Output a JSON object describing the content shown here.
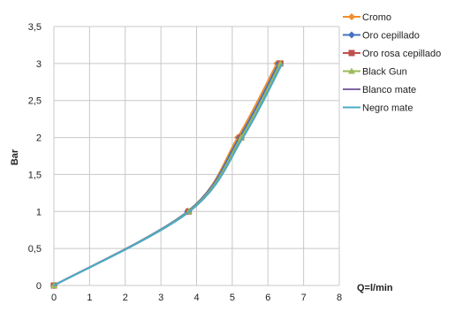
{
  "chart_data": {
    "type": "line",
    "title": "",
    "xlabel": "Q=l/min",
    "ylabel": "Bar",
    "xlim": [
      0,
      8
    ],
    "ylim": [
      0,
      3.5
    ],
    "x_ticks": [
      "0",
      "1",
      "2",
      "3",
      "4",
      "5",
      "6",
      "7",
      "8"
    ],
    "y_ticks": [
      "0",
      "0,5",
      "1",
      "1,5",
      "2",
      "2,5",
      "3",
      "3,5"
    ],
    "grid": true,
    "legend_position": "right",
    "series": [
      {
        "name": "Cromo",
        "color": "#f28e2b",
        "marker": "diamond",
        "points": [
          [
            0,
            0
          ],
          [
            3.75,
            1
          ],
          [
            5.15,
            2
          ],
          [
            6.25,
            3
          ]
        ]
      },
      {
        "name": "Oro cepillado",
        "color": "#4472c4",
        "marker": "diamond",
        "points": [
          [
            0,
            0
          ],
          [
            3.75,
            1
          ],
          [
            5.2,
            2
          ],
          [
            6.3,
            3
          ]
        ]
      },
      {
        "name": "Oro rosa cepillado",
        "color": "#c0504d",
        "marker": "square",
        "points": [
          [
            0,
            0
          ],
          [
            3.78,
            1
          ],
          [
            5.25,
            2
          ],
          [
            6.35,
            3
          ]
        ]
      },
      {
        "name": "Black Gun",
        "color": "#9bbb59",
        "marker": "triangle",
        "points": [
          [
            0,
            0
          ],
          [
            3.78,
            1
          ],
          [
            5.25,
            2
          ],
          [
            6.35,
            3
          ]
        ]
      },
      {
        "name": "Blanco mate",
        "color": "#8064a2",
        "marker": "none",
        "points": [
          [
            0,
            0
          ],
          [
            3.8,
            1
          ],
          [
            5.3,
            2
          ],
          [
            6.4,
            3
          ]
        ]
      },
      {
        "name": "Negro mate",
        "color": "#4bacc6",
        "marker": "none",
        "points": [
          [
            0,
            0
          ],
          [
            3.8,
            1
          ],
          [
            5.3,
            2
          ],
          [
            6.4,
            3
          ]
        ]
      }
    ]
  }
}
